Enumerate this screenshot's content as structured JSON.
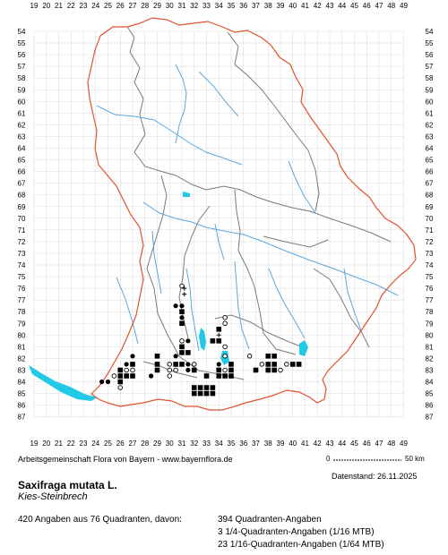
{
  "map": {
    "x_labels": [
      "19",
      "20",
      "21",
      "22",
      "23",
      "24",
      "25",
      "26",
      "27",
      "28",
      "29",
      "30",
      "31",
      "32",
      "33",
      "34",
      "35",
      "36",
      "37",
      "38",
      "39",
      "40",
      "41",
      "42",
      "43",
      "44",
      "45",
      "46",
      "47",
      "48",
      "49"
    ],
    "y_labels": [
      "54",
      "55",
      "56",
      "57",
      "58",
      "59",
      "60",
      "61",
      "62",
      "63",
      "64",
      "65",
      "66",
      "67",
      "68",
      "69",
      "70",
      "71",
      "72",
      "73",
      "74",
      "75",
      "76",
      "77",
      "78",
      "79",
      "80",
      "81",
      "82",
      "83",
      "84",
      "85",
      "86",
      "87"
    ],
    "colors": {
      "border_outer": "#e0522d",
      "border_inner": "#7a7a7a",
      "rivers": "#5aa8e0",
      "lakes": "#22c8e8",
      "grid": "#d8d8d8",
      "symbols": "#000000"
    },
    "legend_symbols": {
      "filled_square": "Quadranten-Angaben",
      "filled_circle": "1/4-Quadranten-Angaben",
      "open_circle": "1/16-Quadranten-Angaben",
      "plus": "1/64-Quadranten-Angaben"
    },
    "occurrences": [
      {
        "x": 31.0,
        "y": 75.8,
        "s": "oc"
      },
      {
        "x": 31.2,
        "y": 76.0,
        "s": "pl"
      },
      {
        "x": 31.2,
        "y": 76.5,
        "s": "pl"
      },
      {
        "x": 30.5,
        "y": 77.5,
        "s": "fc"
      },
      {
        "x": 31.0,
        "y": 77.5,
        "s": "fc"
      },
      {
        "x": 31.0,
        "y": 78.0,
        "s": "fs"
      },
      {
        "x": 31.0,
        "y": 78.5,
        "s": "fc"
      },
      {
        "x": 31.0,
        "y": 79.0,
        "s": "fs"
      },
      {
        "x": 34.5,
        "y": 78.5,
        "s": "oc"
      },
      {
        "x": 34.5,
        "y": 79.0,
        "s": "oc"
      },
      {
        "x": 34.0,
        "y": 79.5,
        "s": "fs"
      },
      {
        "x": 34.0,
        "y": 80.0,
        "s": "pl"
      },
      {
        "x": 31.0,
        "y": 80.5,
        "s": "oc"
      },
      {
        "x": 31.5,
        "y": 80.5,
        "s": "fc"
      },
      {
        "x": 33.5,
        "y": 80.5,
        "s": "fs"
      },
      {
        "x": 34.0,
        "y": 80.5,
        "s": "fs"
      },
      {
        "x": 31.0,
        "y": 81.0,
        "s": "fs"
      },
      {
        "x": 34.5,
        "y": 81.0,
        "s": "oc"
      },
      {
        "x": 27.0,
        "y": 81.8,
        "s": "fc"
      },
      {
        "x": 29.0,
        "y": 81.8,
        "s": "fs"
      },
      {
        "x": 30.5,
        "y": 81.8,
        "s": "fc"
      },
      {
        "x": 31.0,
        "y": 81.5,
        "s": "fs"
      },
      {
        "x": 31.5,
        "y": 81.5,
        "s": "fs"
      },
      {
        "x": 34.5,
        "y": 81.8,
        "s": "oc"
      },
      {
        "x": 36.5,
        "y": 81.8,
        "s": "oc"
      },
      {
        "x": 38.0,
        "y": 81.8,
        "s": "fs"
      },
      {
        "x": 38.5,
        "y": 81.8,
        "s": "fs"
      },
      {
        "x": 26.5,
        "y": 82.5,
        "s": "fc"
      },
      {
        "x": 27.0,
        "y": 82.5,
        "s": "fs"
      },
      {
        "x": 29.0,
        "y": 82.5,
        "s": "fs"
      },
      {
        "x": 30.0,
        "y": 82.5,
        "s": "oc"
      },
      {
        "x": 30.5,
        "y": 82.5,
        "s": "fs"
      },
      {
        "x": 31.0,
        "y": 82.5,
        "s": "fs"
      },
      {
        "x": 31.5,
        "y": 82.5,
        "s": "fc"
      },
      {
        "x": 32.0,
        "y": 82.5,
        "s": "oc"
      },
      {
        "x": 34.0,
        "y": 82.5,
        "s": "fc"
      },
      {
        "x": 35.0,
        "y": 82.5,
        "s": "fs"
      },
      {
        "x": 37.5,
        "y": 82.5,
        "s": "oc"
      },
      {
        "x": 38.0,
        "y": 82.5,
        "s": "fs"
      },
      {
        "x": 38.5,
        "y": 82.5,
        "s": "fs"
      },
      {
        "x": 39.5,
        "y": 82.5,
        "s": "oc"
      },
      {
        "x": 40.0,
        "y": 82.5,
        "s": "fs"
      },
      {
        "x": 40.5,
        "y": 82.5,
        "s": "fs"
      },
      {
        "x": 26.0,
        "y": 83.0,
        "s": "fs"
      },
      {
        "x": 26.5,
        "y": 83.0,
        "s": "oc"
      },
      {
        "x": 27.0,
        "y": 83.0,
        "s": "oc"
      },
      {
        "x": 29.0,
        "y": 83.0,
        "s": "fs"
      },
      {
        "x": 30.0,
        "y": 83.0,
        "s": "oc"
      },
      {
        "x": 30.5,
        "y": 83.0,
        "s": "oc"
      },
      {
        "x": 31.5,
        "y": 83.0,
        "s": "fc"
      },
      {
        "x": 32.0,
        "y": 83.0,
        "s": "fs"
      },
      {
        "x": 34.0,
        "y": 83.0,
        "s": "fs"
      },
      {
        "x": 34.5,
        "y": 83.0,
        "s": "oc"
      },
      {
        "x": 35.0,
        "y": 83.0,
        "s": "fs"
      },
      {
        "x": 37.0,
        "y": 83.0,
        "s": "fs"
      },
      {
        "x": 38.0,
        "y": 83.0,
        "s": "fs"
      },
      {
        "x": 38.5,
        "y": 83.0,
        "s": "fs"
      },
      {
        "x": 39.0,
        "y": 83.0,
        "s": "oc"
      },
      {
        "x": 25.5,
        "y": 83.5,
        "s": "oc"
      },
      {
        "x": 26.0,
        "y": 83.5,
        "s": "fs"
      },
      {
        "x": 26.5,
        "y": 83.5,
        "s": "fs"
      },
      {
        "x": 27.0,
        "y": 83.5,
        "s": "fs"
      },
      {
        "x": 28.5,
        "y": 83.5,
        "s": "fc"
      },
      {
        "x": 30.0,
        "y": 83.5,
        "s": "oc"
      },
      {
        "x": 33.0,
        "y": 83.5,
        "s": "fs"
      },
      {
        "x": 34.0,
        "y": 83.5,
        "s": "fs"
      },
      {
        "x": 34.5,
        "y": 83.5,
        "s": "fs"
      },
      {
        "x": 35.0,
        "y": 83.5,
        "s": "fs"
      },
      {
        "x": 24.5,
        "y": 84.0,
        "s": "fc"
      },
      {
        "x": 25.0,
        "y": 84.0,
        "s": "fc"
      },
      {
        "x": 26.0,
        "y": 84.0,
        "s": "fs"
      },
      {
        "x": 26.0,
        "y": 84.5,
        "s": "oc"
      },
      {
        "x": 32.0,
        "y": 84.5,
        "s": "fs"
      },
      {
        "x": 32.5,
        "y": 84.5,
        "s": "fs"
      },
      {
        "x": 33.0,
        "y": 84.5,
        "s": "fs"
      },
      {
        "x": 33.5,
        "y": 84.5,
        "s": "fs"
      },
      {
        "x": 32.0,
        "y": 85.0,
        "s": "fs"
      },
      {
        "x": 32.5,
        "y": 85.0,
        "s": "fs"
      },
      {
        "x": 33.0,
        "y": 85.0,
        "s": "fs"
      },
      {
        "x": 33.5,
        "y": 85.0,
        "s": "fs"
      }
    ]
  },
  "footer": {
    "credit": "Arbeitsgemeinschaft Flora von Bayern - www.bayernflora.de",
    "scale_start": "0",
    "scale_end": "50 km",
    "date": "Datenstand: 26.11.2025",
    "species_name": "Saxifraga mutata L.",
    "common_name": "Kies-Steinbrech",
    "summary": "420 Angaben aus 76 Quadranten, davon:",
    "stats": [
      "394 Quadranten-Angaben",
      "3 1/4-Quadranten-Angaben (1/16 MTB)",
      "23 1/16-Quadranten-Angaben (1/64 MTB)"
    ]
  }
}
